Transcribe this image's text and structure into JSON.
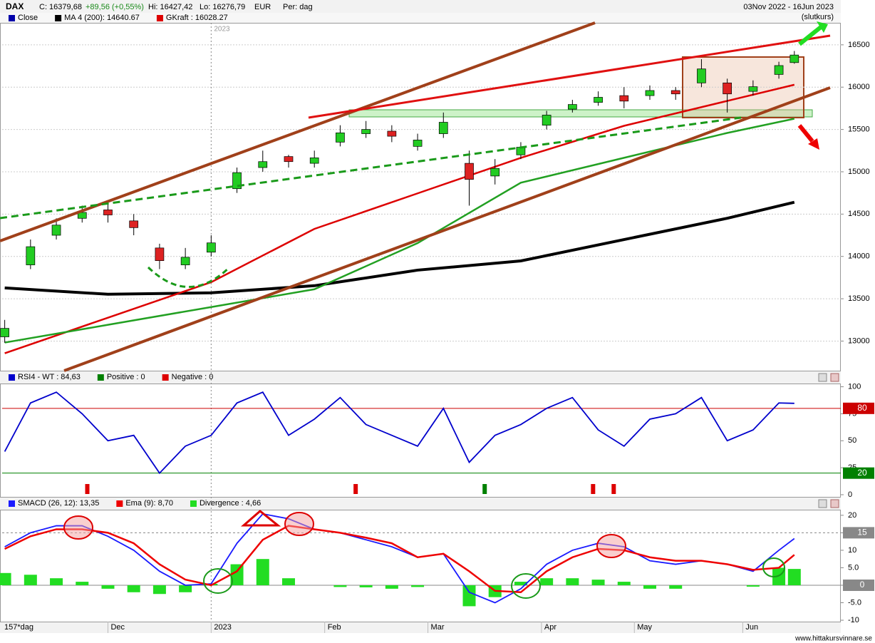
{
  "header": {
    "symbol": "DAX",
    "close": "C: 16379,68",
    "change": "+89,56 (+0,55%)",
    "high": "Hi: 16427,42",
    "low": "Lo: 16276,79",
    "currency": "EUR",
    "period": "Per: dag",
    "range": "03Nov 2022 - 16Jun 2023",
    "price_type": "(slutkurs)"
  },
  "chart_data": [
    {
      "type": "candlestick",
      "name": "Close",
      "color": "#0000aa",
      "x": [
        0,
        5,
        10,
        15,
        20,
        25,
        30,
        35,
        40,
        45,
        50,
        55,
        60,
        65,
        70,
        75,
        80,
        85,
        90,
        95,
        100,
        105,
        110,
        115,
        120,
        125,
        130,
        135,
        140,
        145,
        150,
        153
      ],
      "open": [
        13050,
        13900,
        14250,
        14450,
        14550,
        14420,
        14100,
        13900,
        14050,
        14800,
        15050,
        15180,
        15100,
        15350,
        15450,
        15480,
        15300,
        15450,
        15100,
        14950,
        15200,
        15550,
        15740,
        15820,
        15900,
        15900,
        15960,
        16050,
        16050,
        15950,
        16150,
        16290
      ],
      "high": [
        13250,
        14200,
        14450,
        14600,
        14650,
        14500,
        14150,
        14100,
        14250,
        15050,
        15250,
        15200,
        15250,
        15550,
        15600,
        15550,
        15450,
        15700,
        15250,
        15150,
        15350,
        15720,
        15850,
        15950,
        16000,
        16020,
        16000,
        16330,
        16100,
        16080,
        16300,
        16427.42
      ],
      "low": [
        12980,
        13850,
        14200,
        14400,
        14400,
        14250,
        13850,
        13850,
        14000,
        14750,
        15000,
        15050,
        15050,
        15300,
        15400,
        15350,
        15250,
        15400,
        14600,
        14850,
        15150,
        15500,
        15700,
        15780,
        15750,
        15850,
        15850,
        16000,
        15700,
        15900,
        16100,
        16276.79
      ],
      "close": [
        13150,
        14115,
        14370,
        14520,
        14490,
        14340,
        13950,
        13990,
        14160,
        14990,
        15120,
        15120,
        15165,
        15460,
        15500,
        15420,
        15375,
        15585,
        14910,
        15040,
        15290,
        15670,
        15795,
        15880,
        15835,
        15960,
        15920,
        16215,
        15920,
        16005,
        16255,
        16379.68
      ],
      "series": [
        {
          "name": "MA 4 (200): 14640.67",
          "color": "#000000",
          "x": [
            0,
            20,
            40,
            60,
            80,
            100,
            120,
            140,
            153
          ],
          "values": [
            13628,
            13553,
            13570,
            13654,
            13838,
            13947,
            14199,
            14451,
            14640.67
          ]
        },
        {
          "name": "GKraft : 16028.27",
          "color": "#dd0000",
          "x": [
            0,
            20,
            40,
            60,
            80,
            100,
            120,
            140,
            153
          ],
          "values": [
            12856,
            13276,
            13696,
            14325,
            14745,
            15165,
            15543,
            15837,
            16028.27
          ]
        },
        {
          "color": "#22a022",
          "x": [
            0,
            20,
            40,
            60,
            80,
            100,
            120,
            140,
            153
          ],
          "values": [
            12982,
            13192,
            13402,
            13612,
            14157,
            14871,
            15165,
            15459,
            15627
          ]
        }
      ],
      "xlim": [
        -0.5,
        162
      ],
      "ylim": [
        12650,
        16760
      ],
      "yticks": [
        13000,
        13500,
        14000,
        14500,
        15000,
        15500,
        16000,
        16500
      ],
      "xticks": [
        {
          "value": 40,
          "label": "2023"
        }
      ],
      "grid": true
    },
    {
      "type": "line",
      "series": [
        {
          "name": "RSI4 - WT : 84,63",
          "color": "#0000cc",
          "x": [
            0,
            5,
            10,
            15,
            20,
            25,
            30,
            35,
            40,
            45,
            50,
            55,
            60,
            65,
            70,
            75,
            80,
            85,
            90,
            95,
            100,
            105,
            110,
            115,
            120,
            125,
            130,
            135,
            140,
            145,
            150,
            153
          ],
          "values": [
            40,
            85,
            95,
            75,
            50,
            55,
            20,
            45,
            55,
            85,
            95,
            55,
            70,
            90,
            65,
            55,
            45,
            80,
            30,
            55,
            65,
            80,
            90,
            60,
            45,
            70,
            75,
            90,
            50,
            60,
            85,
            84.63
          ]
        }
      ],
      "signals": [
        {
          "name": "Positive : 0",
          "color": "#008000",
          "x": [
            93
          ]
        },
        {
          "name": "Negative : 0",
          "color": "#dd0000",
          "x": [
            16,
            68,
            114,
            118
          ]
        }
      ],
      "levels": [
        {
          "value": 80,
          "color": "#cc0000"
        },
        {
          "value": 20,
          "color": "#008000"
        }
      ],
      "xlim": [
        -0.5,
        162
      ],
      "ylim": [
        -2,
        103
      ],
      "yticks": [
        0,
        25,
        50,
        75,
        100
      ],
      "grid": false
    },
    {
      "type": "line",
      "series": [
        {
          "name": "SMACD (26, 12): 13,35",
          "color": "#1a1aff",
          "x": [
            0,
            5,
            10,
            15,
            20,
            25,
            30,
            35,
            40,
            45,
            50,
            55,
            60,
            65,
            70,
            75,
            80,
            85,
            90,
            95,
            100,
            105,
            110,
            115,
            120,
            125,
            130,
            135,
            140,
            145,
            150,
            153
          ],
          "values": [
            11,
            15,
            17,
            17,
            14,
            10,
            4,
            0,
            0.4,
            12,
            20.4,
            19,
            16,
            15,
            13,
            11,
            8,
            9,
            -2,
            -5,
            -1,
            6,
            10,
            12,
            11,
            7,
            6,
            7,
            6,
            4,
            10,
            13.35
          ]
        },
        {
          "name": "Ema (9): 8,70",
          "color": "#ee0000",
          "x": [
            0,
            5,
            10,
            15,
            20,
            25,
            30,
            35,
            40,
            45,
            50,
            55,
            60,
            65,
            70,
            75,
            80,
            85,
            90,
            95,
            100,
            105,
            110,
            115,
            120,
            125,
            130,
            135,
            140,
            145,
            150,
            153
          ],
          "values": [
            10.4,
            14,
            16,
            16,
            15,
            12,
            6,
            1.6,
            0,
            4,
            13,
            17,
            16,
            15,
            13.6,
            12,
            8,
            9,
            4,
            -1.6,
            -2,
            4,
            8,
            10.4,
            10,
            8,
            7,
            7,
            6,
            4.4,
            5,
            8.7
          ]
        },
        {
          "name": "Divergence : 4,66",
          "color": "#22dd22",
          "type": "bar",
          "x": [
            0,
            5,
            10,
            15,
            20,
            25,
            30,
            35,
            40,
            45,
            50,
            55,
            60,
            65,
            70,
            75,
            80,
            85,
            90,
            95,
            100,
            105,
            110,
            115,
            120,
            125,
            130,
            135,
            140,
            145,
            150,
            153
          ],
          "values": [
            3.5,
            3,
            2,
            1,
            -1,
            -2,
            -2.5,
            -2,
            0.4,
            6,
            7.5,
            2,
            0,
            -0.5,
            -0.6,
            -1,
            -0.5,
            0,
            -6,
            -3.4,
            1,
            2,
            2,
            1.6,
            1,
            -1,
            -1,
            0,
            0,
            -0.4,
            5,
            4.66
          ]
        }
      ],
      "levels": [
        {
          "value": 15,
          "color": "#888888"
        },
        {
          "value": 0,
          "color": "#888888"
        }
      ],
      "xlim": [
        -0.5,
        162
      ],
      "ylim": [
        -10.4,
        21.6
      ],
      "yticks": [
        -10,
        {
          "value": -5,
          "label": "-5.0"
        },
        0,
        {
          "value": 5,
          "label": "5.0"
        },
        10,
        15,
        20
      ],
      "period": "157*dag",
      "xticks": [
        {
          "value": 20,
          "label": "Dec"
        },
        {
          "value": 40,
          "label": "2023"
        },
        {
          "value": 62,
          "label": "Feb"
        },
        {
          "value": 82,
          "label": "Mar"
        },
        {
          "value": 104,
          "label": "Apr"
        },
        {
          "value": 122,
          "label": "May"
        },
        {
          "value": 143,
          "label": "Jun"
        }
      ],
      "grid": false
    }
  ],
  "footer": "www.hittakursvinnare.se"
}
